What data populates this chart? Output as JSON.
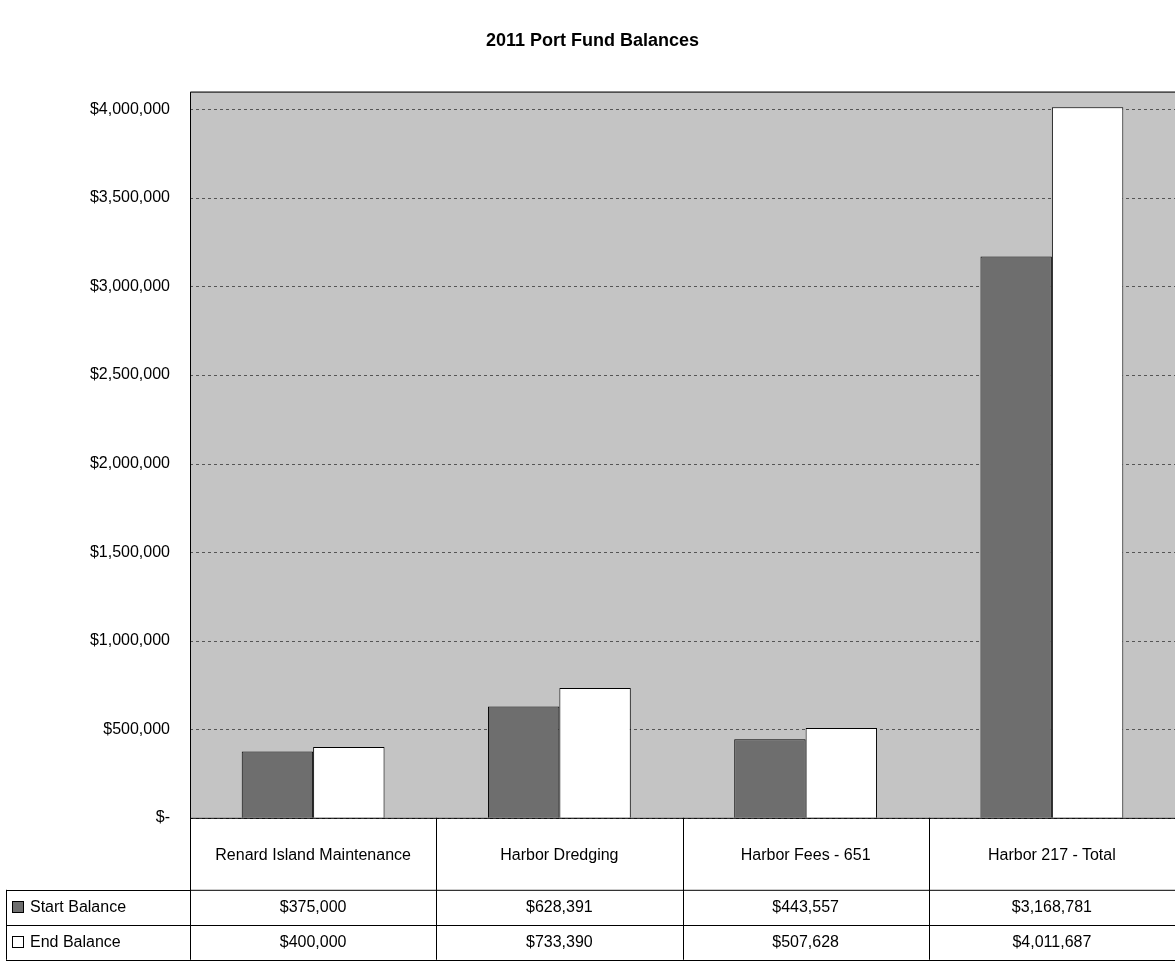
{
  "chart_data": {
    "type": "bar",
    "title": "2011 Port Fund Balances",
    "categories": [
      "Renard Island Maintenance",
      "Harbor Dredging",
      "Harbor Fees - 651",
      "Harbor 217 - Total"
    ],
    "series": [
      {
        "name": "Start Balance",
        "color": "#6e6e6e",
        "values": [
          375000,
          628391,
          443557,
          3168781
        ],
        "value_labels": [
          "$375,000",
          "$628,391",
          "$443,557",
          "$3,168,781"
        ]
      },
      {
        "name": "End Balance",
        "color": "#ffffff",
        "values": [
          400000,
          733390,
          507628,
          4011687
        ],
        "value_labels": [
          "$400,000",
          "$733,390",
          "$507,628",
          "$4,011,687"
        ]
      }
    ],
    "ylim": [
      0,
      4100000
    ],
    "yticks": [
      {
        "value": 0,
        "label": "$-"
      },
      {
        "value": 500000,
        "label": "$500,000"
      },
      {
        "value": 1000000,
        "label": "$1,000,000"
      },
      {
        "value": 1500000,
        "label": "$1,500,000"
      },
      {
        "value": 2000000,
        "label": "$2,000,000"
      },
      {
        "value": 2500000,
        "label": "$2,500,000"
      },
      {
        "value": 3000000,
        "label": "$3,000,000"
      },
      {
        "value": 3500000,
        "label": "$3,500,000"
      },
      {
        "value": 4000000,
        "label": "$4,000,000"
      }
    ],
    "grid": "y",
    "data_labels": true,
    "legend": "bottom left"
  }
}
